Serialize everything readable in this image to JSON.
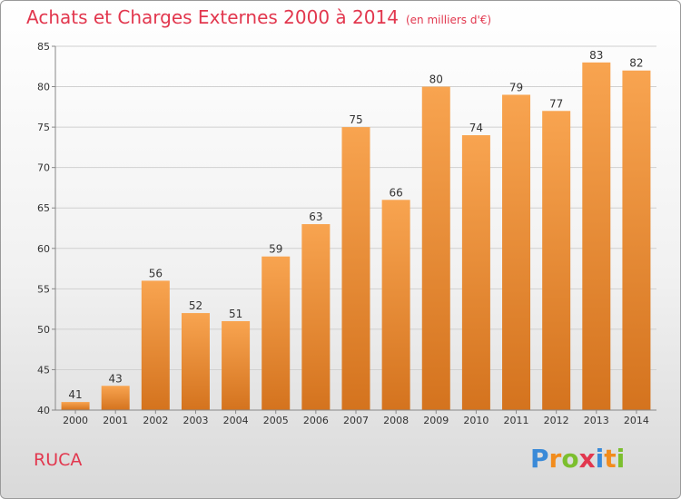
{
  "title": "Achats et Charges Externes 2000 à 2014",
  "unit_note": "(en milliers d'€)",
  "commune": "RUCA",
  "brand": {
    "name": "Proxiti",
    "letters": [
      {
        "ch": "P",
        "color": "#3a8ad8"
      },
      {
        "ch": "r",
        "color": "#f28c1c"
      },
      {
        "ch": "o",
        "color": "#7cbf2e"
      },
      {
        "ch": "x",
        "color": "#e2374e"
      },
      {
        "ch": "i",
        "color": "#3a8ad8"
      },
      {
        "ch": "t",
        "color": "#f28c1c"
      },
      {
        "ch": "i",
        "color": "#7cbf2e"
      }
    ]
  },
  "colors": {
    "title": "#e2374e",
    "bar_light": "#f8a450",
    "bar_dark": "#d4731e",
    "grid": "#d0d0d0",
    "axis": "#888888"
  },
  "chart_data": {
    "type": "bar",
    "categories": [
      "2000",
      "2001",
      "2002",
      "2003",
      "2004",
      "2005",
      "2006",
      "2007",
      "2008",
      "2009",
      "2010",
      "2011",
      "2012",
      "2013",
      "2014"
    ],
    "values": [
      41,
      43,
      56,
      52,
      51,
      59,
      63,
      75,
      66,
      80,
      74,
      79,
      77,
      83,
      82
    ],
    "ylim": [
      40,
      85
    ],
    "yticks": [
      40,
      45,
      50,
      55,
      60,
      65,
      70,
      75,
      80,
      85
    ],
    "grid": true,
    "xlabel": "",
    "ylabel": ""
  }
}
